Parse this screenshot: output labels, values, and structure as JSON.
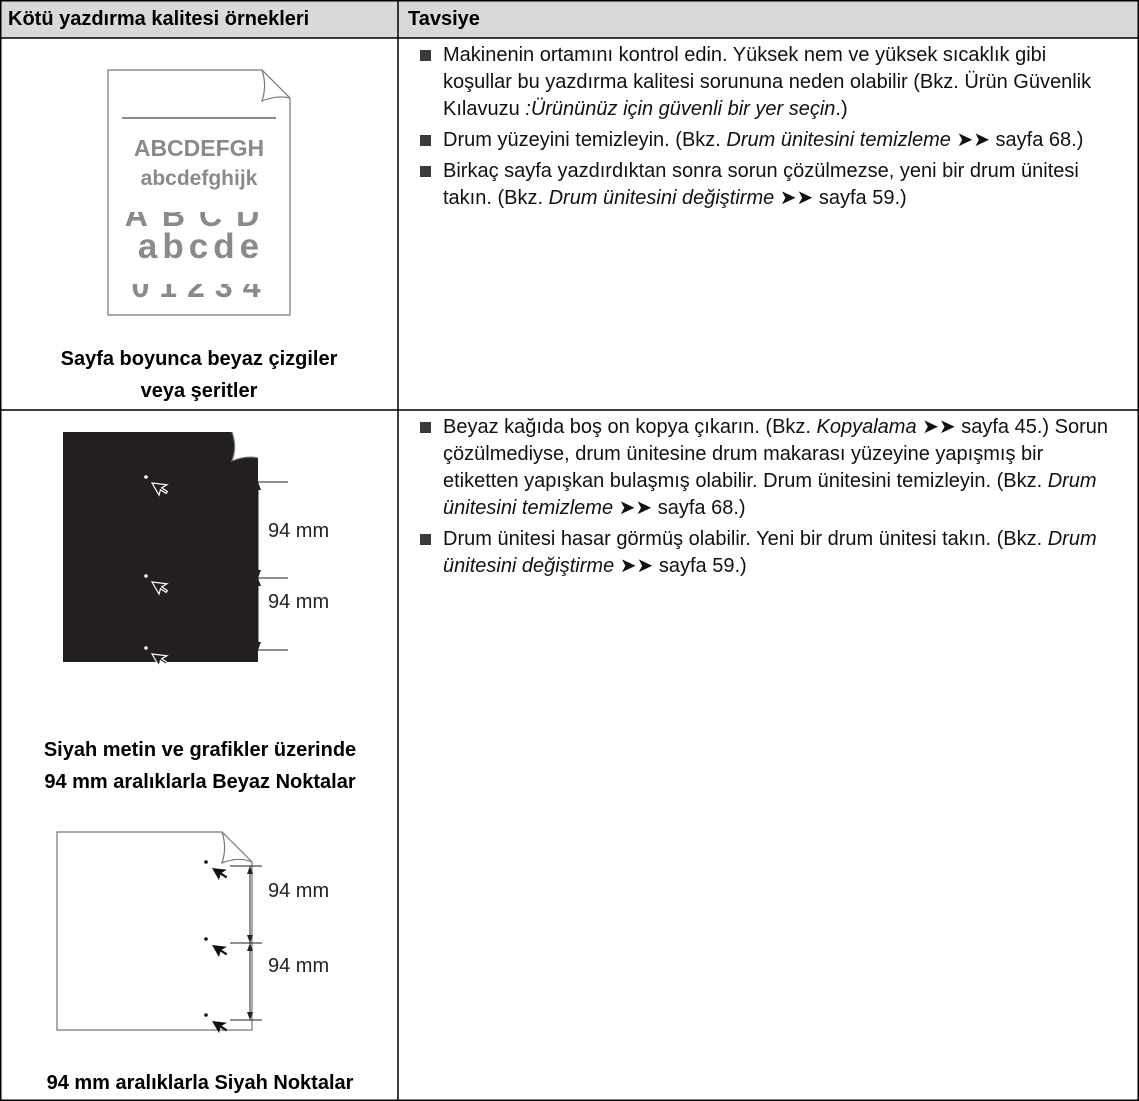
{
  "table": {
    "headers": [
      "Kötü yazdırma kalitesi örnekleri",
      "Tavsiye"
    ],
    "rows": [
      {
        "samples": [
          {
            "illustration_text": [
              "ABCDEFGH",
              "abcdefghijk",
              "ABCD",
              "abcde",
              "01234"
            ],
            "caption": [
              "Sayfa boyunca beyaz çizgiler",
              "veya şeritler"
            ]
          }
        ],
        "advice": [
          [
            {
              "text": "Makinenin ortamını kontrol edin. Yüksek nem ve yüksek sıcaklık gibi koşullar bu yazdırma kalitesi sorununa neden olabilir (Bkz. Ürün Güvenlik Kılavuzu ",
              "italic": false
            },
            {
              "text": ":Ürününüz için güvenli bir yer seçin",
              "italic": true
            },
            {
              "text": ".)",
              "italic": false
            }
          ],
          [
            {
              "text": "Drum yüzeyini temizleyin. (Bkz. ",
              "italic": false
            },
            {
              "text": "Drum ünitesini temizleme",
              "italic": true
            },
            {
              "text": " ➤➤ sayfa 68.)",
              "italic": false
            }
          ],
          [
            {
              "text": "Birkaç sayfa yazdırdıktan sonra sorun çözülmezse, yeni bir drum ünitesi takın. (Bkz. ",
              "italic": false
            },
            {
              "text": "Drum ünitesini değiştirme",
              "italic": true
            },
            {
              "text": " ➤➤ sayfa 59.)",
              "italic": false
            }
          ]
        ]
      },
      {
        "samples": [
          {
            "dimension_labels": [
              "94 mm",
              "94 mm"
            ],
            "caption": [
              "Siyah metin ve grafikler üzerinde",
              "94 mm aralıklarla Beyaz Noktalar"
            ]
          },
          {
            "dimension_labels": [
              "94 mm",
              "94 mm"
            ],
            "caption": [
              "94 mm aralıklarla Siyah Noktalar"
            ]
          }
        ],
        "advice": [
          [
            {
              "text": "Beyaz kağıda boş on kopya çıkarın. (Bkz. ",
              "italic": false
            },
            {
              "text": "Kopyalama",
              "italic": true
            },
            {
              "text": " ➤➤ sayfa 45.) Sorun çözülmediyse, drum ünitesine drum makarası yüzeyine yapışmış bir etiketten yapışkan bulaşmış olabilir. Drum ünitesini temizleyin. (Bkz. ",
              "italic": false
            },
            {
              "text": "Drum ünitesini temizleme",
              "italic": true
            },
            {
              "text": " ➤➤ sayfa 68.)",
              "italic": false
            }
          ],
          [
            {
              "text": "Drum ünitesi hasar görmüş olabilir. Yeni bir drum ünitesi takın. (Bkz. ",
              "italic": false
            },
            {
              "text": "Drum ünitesini değiştirme",
              "italic": true
            },
            {
              "text": " ➤➤ sayfa 59.)",
              "italic": false
            }
          ]
        ]
      }
    ]
  }
}
